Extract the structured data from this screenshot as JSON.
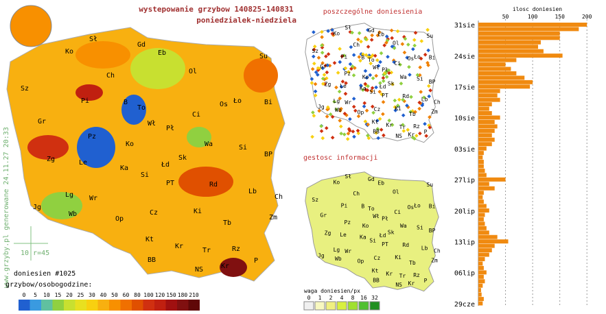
{
  "header": {
    "title": "wystepowanie grzybow 140825-140831",
    "subtitle": "poniedzialek-niedziela",
    "side_note": "www.grzyby.pl generowane 24.11.27 20:33",
    "scale_note": "10 r=45",
    "count": "doniesien #1025",
    "legend_title": "grzybow/osobogodzine:"
  },
  "legend": {
    "labels": [
      0,
      5,
      10,
      15,
      20,
      25,
      30,
      40,
      50,
      60,
      80,
      100,
      120,
      150,
      180,
      210
    ],
    "colors": [
      "#2060d0",
      "#3a9ae0",
      "#60c0a0",
      "#90d040",
      "#c8e030",
      "#e8e020",
      "#f8d010",
      "#f8b010",
      "#f89000",
      "#f07000",
      "#e05000",
      "#d03010",
      "#c02010",
      "#a01010",
      "#801010",
      "#600808"
    ]
  },
  "cities": [
    [
      "Sł",
      130,
      60
    ],
    [
      "Ko",
      95,
      78
    ],
    [
      "Gd",
      200,
      68
    ],
    [
      "Eb",
      230,
      80
    ],
    [
      "Su",
      378,
      85
    ],
    [
      "Ol",
      275,
      107
    ],
    [
      "Ch",
      155,
      113
    ],
    [
      "Sz",
      30,
      132
    ],
    [
      "Pi",
      118,
      150
    ],
    [
      "B",
      180,
      152
    ],
    [
      "To",
      200,
      160
    ],
    [
      "Os",
      320,
      155
    ],
    [
      "Ło",
      340,
      150
    ],
    [
      "Bi",
      385,
      152
    ],
    [
      "Gr",
      55,
      180
    ],
    [
      "Wł",
      215,
      183
    ],
    [
      "Ci",
      280,
      170
    ],
    [
      "Pł",
      242,
      190
    ],
    [
      "Pz",
      128,
      202
    ],
    [
      "Ko",
      183,
      213
    ],
    [
      "Wa",
      298,
      213
    ],
    [
      "Si",
      348,
      218
    ],
    [
      "Zg",
      68,
      235
    ],
    [
      "Le",
      115,
      240
    ],
    [
      "Ka",
      175,
      248
    ],
    [
      "Sk",
      260,
      233
    ],
    [
      "BP",
      385,
      228
    ],
    [
      "Łd",
      235,
      243
    ],
    [
      "Si",
      205,
      258
    ],
    [
      "Lb",
      362,
      282
    ],
    [
      "PT",
      242,
      270
    ],
    [
      "Rd",
      305,
      272
    ],
    [
      "Lg",
      95,
      287
    ],
    [
      "Wr",
      130,
      292
    ],
    [
      "Ch",
      400,
      290
    ],
    [
      "Jg",
      48,
      305
    ],
    [
      "Wb",
      100,
      315
    ],
    [
      "Ki",
      282,
      311
    ],
    [
      "Op",
      168,
      322
    ],
    [
      "Cz",
      218,
      313
    ],
    [
      "Zm",
      392,
      320
    ],
    [
      "Tb",
      325,
      328
    ],
    [
      "Kt",
      212,
      352
    ],
    [
      "Kr",
      255,
      362
    ],
    [
      "Rz",
      338,
      366
    ],
    [
      "Tr",
      295,
      368
    ],
    [
      "BB",
      215,
      382
    ],
    [
      "Kr",
      322,
      391
    ],
    [
      "P",
      370,
      383
    ],
    [
      "NS",
      284,
      396
    ]
  ],
  "panels": {
    "reports_title": "poszczególne doniesienia",
    "density_title": "gestosc informacji",
    "density_legend_title": "waga doniesien/px",
    "density_legend": [
      0,
      1,
      2,
      4,
      8,
      16,
      32
    ]
  },
  "chart_data": {
    "type": "bar",
    "orientation": "horizontal",
    "title": "ilosc doniesien",
    "color": "#f08a10",
    "categories": [
      "29cze",
      null,
      null,
      null,
      null,
      null,
      null,
      "06lip",
      null,
      null,
      null,
      null,
      null,
      null,
      "13lip",
      null,
      null,
      null,
      null,
      null,
      null,
      "20lip",
      null,
      null,
      null,
      null,
      null,
      null,
      "27lip",
      null,
      null,
      null,
      null,
      null,
      null,
      "03sie",
      null,
      null,
      null,
      null,
      null,
      null,
      "10sie",
      null,
      null,
      null,
      null,
      null,
      null,
      "17sie",
      null,
      null,
      null,
      null,
      null,
      null,
      "24sie",
      null,
      null,
      null,
      null,
      null,
      null,
      "31sie"
    ],
    "values": [
      8,
      10,
      6,
      5,
      8,
      12,
      10,
      15,
      10,
      8,
      12,
      20,
      25,
      30,
      55,
      35,
      20,
      15,
      12,
      10,
      12,
      20,
      15,
      10,
      8,
      10,
      30,
      20,
      50,
      15,
      12,
      10,
      10,
      8,
      10,
      15,
      25,
      30,
      25,
      30,
      35,
      30,
      40,
      25,
      20,
      25,
      40,
      35,
      40,
      95,
      100,
      85,
      70,
      60,
      50,
      70,
      155,
      120,
      110,
      115,
      150,
      150,
      185,
      200
    ],
    "xlim": [
      0,
      225
    ],
    "xticks": [
      50,
      100,
      150,
      200
    ],
    "grid": true
  }
}
